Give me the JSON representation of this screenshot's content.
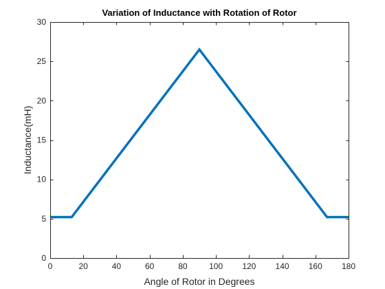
{
  "chart_data": {
    "type": "line",
    "title": "Variation of Inductance with Rotation of Rotor",
    "xlabel": "Angle of Rotor in Degrees",
    "ylabel": "Inductance(mH)",
    "xlim": [
      0,
      180
    ],
    "ylim": [
      0,
      30
    ],
    "xticks": [
      0,
      20,
      40,
      60,
      80,
      100,
      120,
      140,
      160,
      180
    ],
    "yticks": [
      0,
      5,
      10,
      15,
      20,
      25,
      30
    ],
    "grid": false,
    "box": true,
    "series": [
      {
        "color": "#0072BD",
        "x": [
          0,
          13,
          90,
          167,
          180
        ],
        "y": [
          5.2,
          5.2,
          26.5,
          5.2,
          5.2
        ]
      }
    ]
  }
}
